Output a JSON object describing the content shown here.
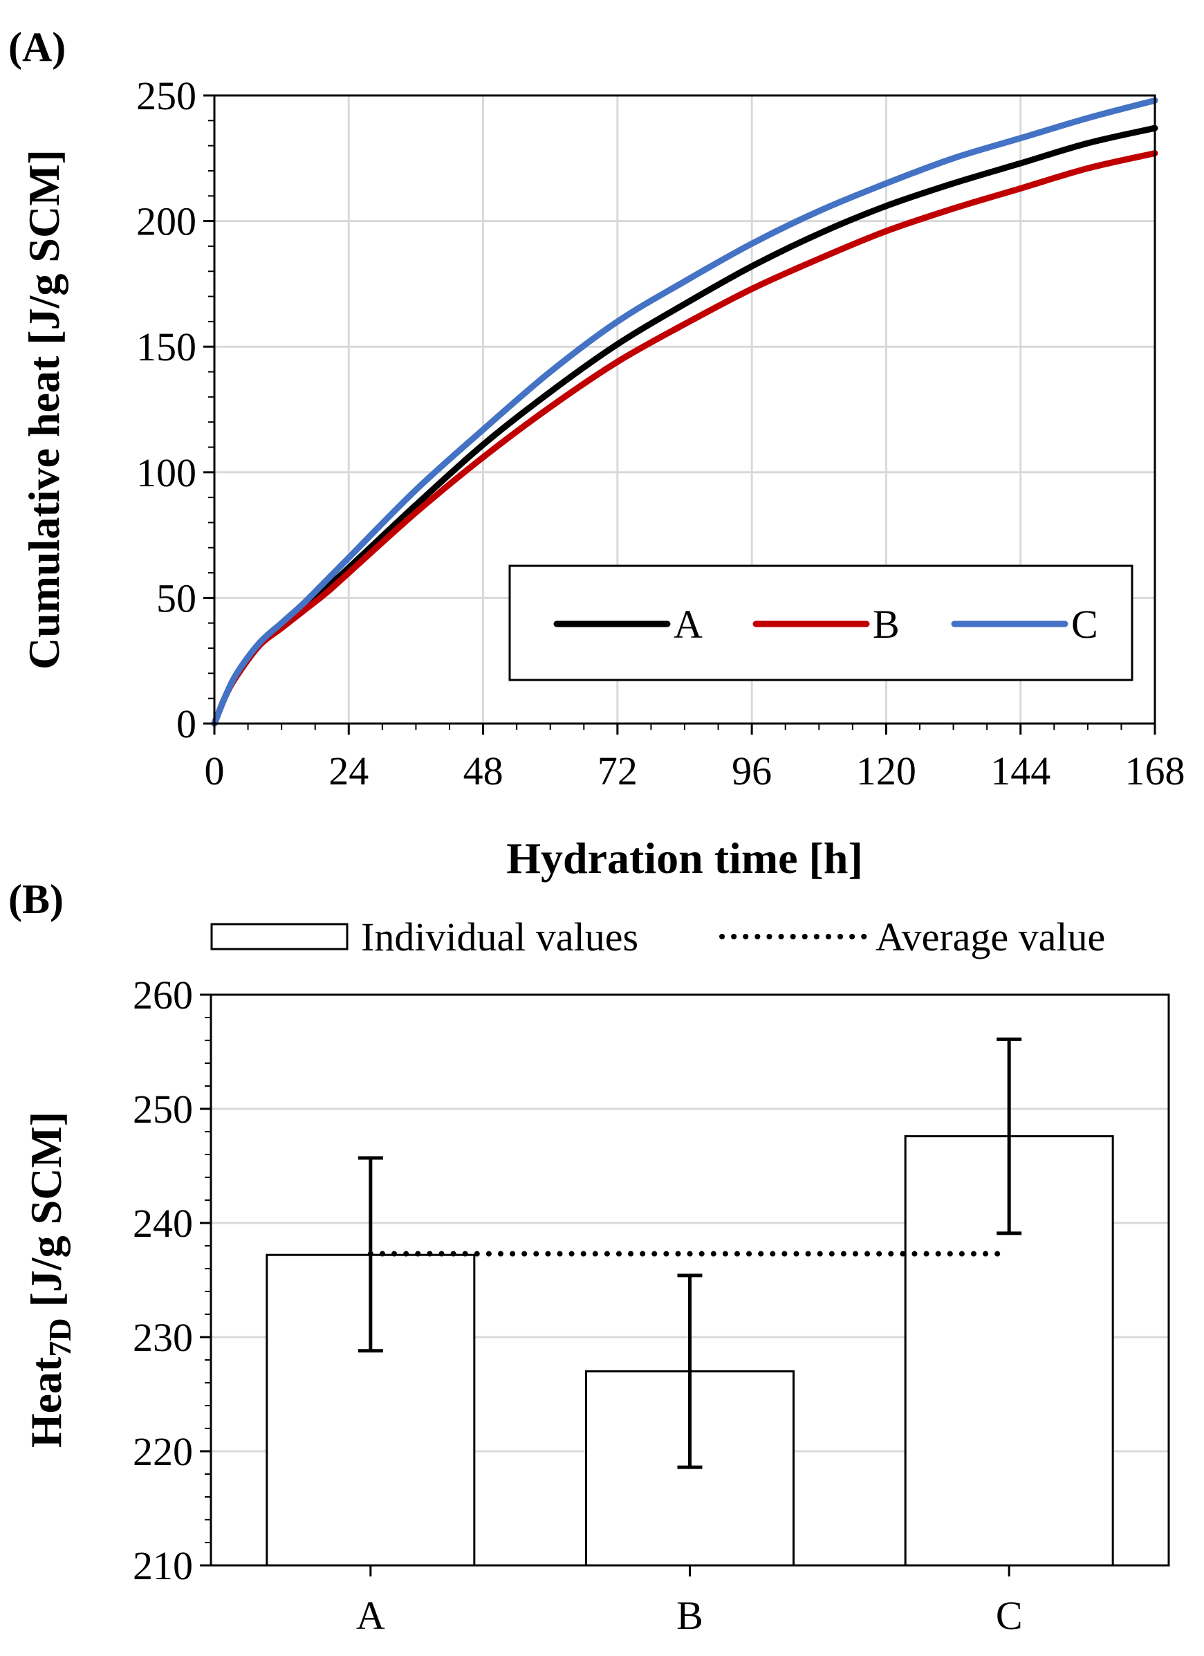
{
  "chart_data": [
    {
      "type": "line",
      "panel_label": "(A)",
      "xlabel": "Hydration time [h]",
      "ylabel": "Cumulative heat [J/g SCM]",
      "xlim": [
        0,
        168
      ],
      "ylim": [
        0,
        250
      ],
      "x_ticks": [
        0,
        24,
        48,
        72,
        96,
        120,
        144,
        168
      ],
      "y_ticks": [
        0,
        50,
        100,
        150,
        200,
        250
      ],
      "grid": true,
      "legend_position": "bottom-right",
      "x": [
        0,
        2,
        4,
        8,
        12,
        16,
        20,
        24,
        36,
        48,
        60,
        72,
        84,
        96,
        108,
        120,
        132,
        144,
        156,
        168
      ],
      "series": [
        {
          "name": "A",
          "color": "#000000",
          "values": [
            0,
            11,
            19,
            31,
            39,
            46,
            54,
            62,
            87,
            111,
            132,
            151,
            167,
            182,
            195,
            206,
            215,
            223,
            231,
            237
          ]
        },
        {
          "name": "B",
          "color": "#c00000",
          "values": [
            0,
            11,
            19,
            31,
            38,
            45,
            52,
            60,
            84,
            106,
            126,
            144,
            159,
            173,
            185,
            196,
            205,
            213,
            221,
            227
          ]
        },
        {
          "name": "C",
          "color": "#4472c4",
          "values": [
            0,
            11,
            20,
            32,
            40,
            48,
            57,
            66,
            93,
            117,
            140,
            160,
            176,
            191,
            204,
            215,
            225,
            233,
            241,
            248
          ]
        }
      ]
    },
    {
      "type": "bar",
      "panel_label": "(B)",
      "xlabel": "",
      "ylabel_main": "Heat",
      "ylabel_sub": "7D",
      "ylabel_rest": " [J/g SCM]",
      "categories": [
        "A",
        "B",
        "C"
      ],
      "values": [
        237.2,
        227.0,
        247.6
      ],
      "error_low": [
        228.8,
        218.6,
        239.1
      ],
      "error_high": [
        245.7,
        235.4,
        256.1
      ],
      "average": 237.3,
      "ylim": [
        210,
        260
      ],
      "y_ticks": [
        210,
        220,
        230,
        240,
        250,
        260
      ],
      "grid": true,
      "legend_position": "top",
      "legend": {
        "bars": "Individual values",
        "average": "Average value"
      }
    }
  ]
}
